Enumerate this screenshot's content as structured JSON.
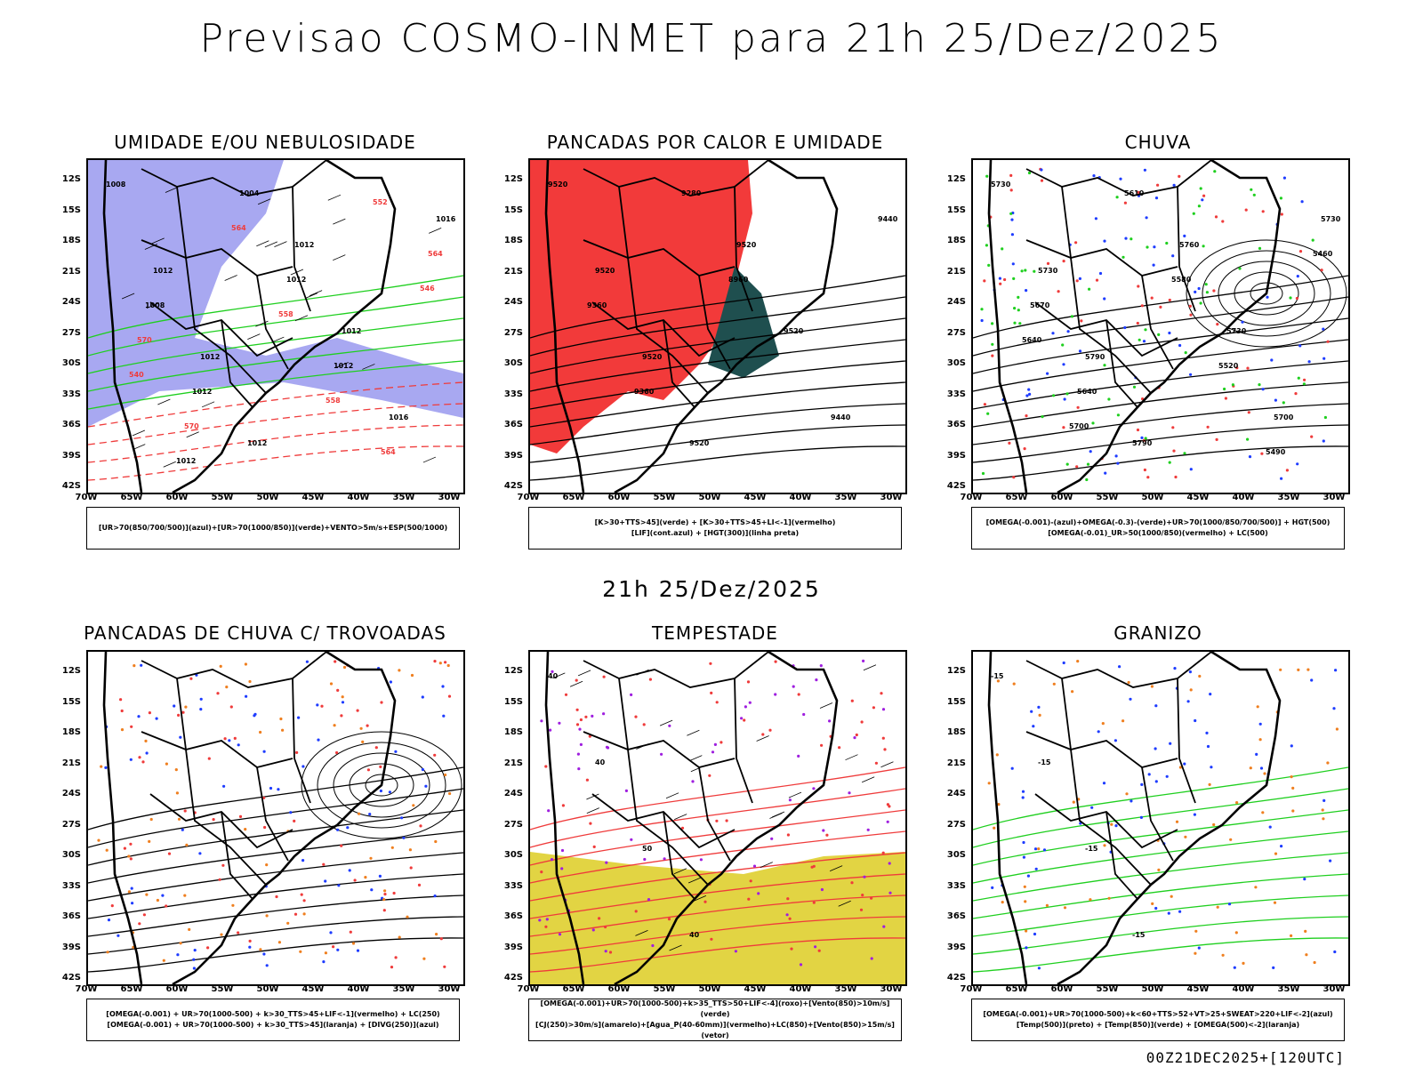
{
  "title": "Previsao COSMO-INMET  para 21h 25/Dez/2025",
  "mid_title": "21h 25/Dez/2025",
  "footer": "00Z21DEC2025+[120UTC]",
  "colors": {
    "purple_fill": "#9f9fef",
    "green_contour": "#1fcf1f",
    "red_contour": "#ef3b3b",
    "red_fill": "#f23a3a",
    "dark_teal": "#1f4f4f",
    "blue_dots": "#1e3cff",
    "orange_dots": "#ef7f1f",
    "yellow_fill": "#dfcf2f",
    "border": "#000000"
  },
  "chart_data": [
    {
      "type": "map",
      "title": "UMIDADE E/OU NEBULOSIDADE",
      "lat_labels": [
        "12S",
        "15S",
        "18S",
        "21S",
        "24S",
        "27S",
        "30S",
        "33S",
        "36S",
        "39S",
        "42S"
      ],
      "lon_labels": [
        "70W",
        "65W",
        "60W",
        "55W",
        "50W",
        "45W",
        "40W",
        "35W",
        "30W"
      ],
      "contour_labels": [
        "1008",
        "1012",
        "1012",
        "1012",
        "1012",
        "1012",
        "1016",
        "1016",
        "1008",
        "1012",
        "1004",
        "1012",
        "1012",
        "564",
        "564",
        "570",
        "570",
        "564",
        "558",
        "558",
        "552",
        "546",
        "540",
        "1012"
      ],
      "legend": [
        "[UR>70(850/700/500)](azul)+[UR>70(1000/850)](verde)+VENTO>5m/s+ESP(500/1000)"
      ]
    },
    {
      "type": "map",
      "title": "PANCADAS POR CALOR E UMIDADE",
      "lat_labels": [
        "12S",
        "15S",
        "18S",
        "21S",
        "24S",
        "27S",
        "30S",
        "33S",
        "36S",
        "39S",
        "42S"
      ],
      "lon_labels": [
        "70W",
        "65W",
        "60W",
        "55W",
        "50W",
        "45W",
        "40W",
        "35W",
        "30W"
      ],
      "contour_labels": [
        "9520",
        "9520",
        "9520",
        "9520",
        "9520",
        "9520",
        "9440",
        "9440",
        "9360",
        "9360",
        "9280",
        "8960"
      ],
      "legend": [
        "[K>30+TTS>45](verde) + [K>30+TTS>45+LI<-1](vermelho)",
        "[LIF](cont.azul) + [HGT(300)](linha preta)"
      ]
    },
    {
      "type": "map",
      "title": "CHUVA",
      "lat_labels": [
        "12S",
        "15S",
        "18S",
        "21S",
        "24S",
        "27S",
        "30S",
        "33S",
        "36S",
        "39S",
        "42S"
      ],
      "lon_labels": [
        "70W",
        "65W",
        "60W",
        "55W",
        "50W",
        "45W",
        "40W",
        "35W",
        "30W"
      ],
      "contour_labels": [
        "5730",
        "5730",
        "5790",
        "5790",
        "5760",
        "5730",
        "5700",
        "5730",
        "5670",
        "5640",
        "5610",
        "5580",
        "5520",
        "5490",
        "5460",
        "5640",
        "5700"
      ],
      "legend": [
        "[OMEGA(-0.001)-(azul)+OMEGA(-0.3)-(verde)+UR>70(1000/850/700/500)] + HGT(500)",
        "[OMEGA(-0.01)_UR>50(1000/850)(vermelho) + LC(500)"
      ]
    },
    {
      "type": "map",
      "title": "PANCADAS DE CHUVA C/ TROVOADAS",
      "lat_labels": [
        "12S",
        "15S",
        "18S",
        "21S",
        "24S",
        "27S",
        "30S",
        "33S",
        "36S",
        "39S",
        "42S"
      ],
      "lon_labels": [
        "70W",
        "65W",
        "60W",
        "55W",
        "50W",
        "45W",
        "40W",
        "35W",
        "30W"
      ],
      "contour_labels": [],
      "legend": [
        "[OMEGA(-0.001) + UR>70(1000-500) + k>30_TTS>45+LIF<-1](vermelho) + LC(250)",
        "[OMEGA(-0.001) + UR>70(1000-500) + k>30_TTS>45](laranja) + [DIVG(250)](azul)"
      ]
    },
    {
      "type": "map",
      "title": "TEMPESTADE",
      "lat_labels": [
        "12S",
        "15S",
        "18S",
        "21S",
        "24S",
        "27S",
        "30S",
        "33S",
        "36S",
        "39S",
        "42S"
      ],
      "lon_labels": [
        "70W",
        "65W",
        "60W",
        "55W",
        "50W",
        "45W",
        "40W",
        "35W",
        "30W"
      ],
      "contour_labels": [
        "40",
        "40",
        "50",
        "40"
      ],
      "legend": [
        "[OMEGA(-0.001)+UR>70(1000-500)+k>35_TTS>50+LIF<-4](roxo)+[Vento(850)>10m/s](verde)",
        "[CJ(250)>30m/s](amarelo)+[Agua_P(40-60mm)](vermelho)+LC(850)+[Vento(850)>15m/s](vetor)"
      ]
    },
    {
      "type": "map",
      "title": "GRANIZO",
      "lat_labels": [
        "12S",
        "15S",
        "18S",
        "21S",
        "24S",
        "27S",
        "30S",
        "33S",
        "36S",
        "39S",
        "42S"
      ],
      "lon_labels": [
        "70W",
        "65W",
        "60W",
        "55W",
        "50W",
        "45W",
        "40W",
        "35W",
        "30W"
      ],
      "contour_labels": [
        "-15",
        "-15",
        "-15",
        "-15"
      ],
      "legend": [
        "[OMEGA(-0.001)+UR>70(1000-500)+k<60+TTS>52+VT>25+SWEAT>220+LIF<-2](azul)",
        "[Temp(500)](preto) + [Temp(850)](verde) + [OMEGA(500)<-2](laranja)"
      ]
    }
  ]
}
